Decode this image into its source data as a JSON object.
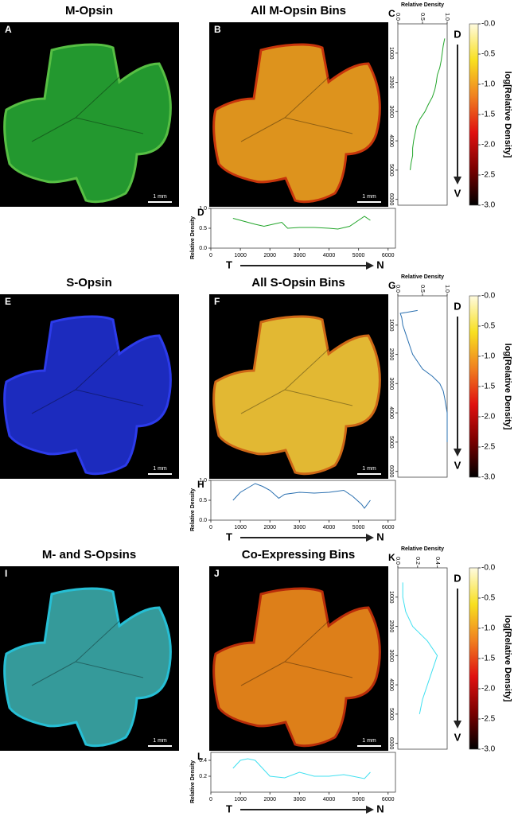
{
  "panels": [
    {
      "letter": "A",
      "title": "M-Opsin",
      "scale": "1 mm"
    },
    {
      "letter": "B",
      "title": "All M-Opsin Bins",
      "scale": "1 mm"
    },
    {
      "letter": "E",
      "title": "S-Opsin",
      "scale": "1 mm"
    },
    {
      "letter": "F",
      "title": "All S-Opsin Bins",
      "scale": "1 mm"
    },
    {
      "letter": "I",
      "title": "M- and S-Opsins",
      "scale": "1 mm"
    },
    {
      "letter": "J",
      "title": "Co-Expressing Bins",
      "scale": "1 mm"
    }
  ],
  "chart_data": [
    {
      "type": "line",
      "orientation": "vertical",
      "letter": "C",
      "xlabel": "Relative Density",
      "start_label": "D",
      "end_label": "V",
      "xlim": [
        0,
        1
      ],
      "xticks": [
        {
          "value": 0,
          "label": "0.0"
        },
        0.5,
        {
          "value": 1,
          "label": "1.0"
        }
      ],
      "ylim": [
        0,
        6200
      ],
      "yticks": [
        1000,
        2000,
        3000,
        4000,
        5000,
        6000
      ],
      "series": [
        {
          "color": "#22a52a",
          "x": [
            500,
            750,
            1000,
            1250,
            1500,
            1750,
            2000,
            2250,
            2500,
            2750,
            3000,
            3250,
            3500,
            3750,
            4000,
            4250,
            4500,
            4750,
            5000
          ],
          "values": [
            0.95,
            0.92,
            0.9,
            0.88,
            0.85,
            0.8,
            0.78,
            0.75,
            0.7,
            0.62,
            0.55,
            0.45,
            0.38,
            0.35,
            0.32,
            0.3,
            0.3,
            0.27,
            0.25
          ]
        }
      ]
    },
    {
      "type": "line",
      "orientation": "horizontal",
      "letter": "D",
      "ylabel": "Relative Density",
      "start_label": "T",
      "end_label": "N",
      "xlim": [
        0,
        6250
      ],
      "xticks": [
        0,
        1000,
        2000,
        3000,
        4000,
        5000,
        6000
      ],
      "ylim": [
        0,
        1
      ],
      "yticks": [
        {
          "value": 0,
          "label": "0.0"
        },
        0.5,
        {
          "value": 1,
          "label": "1.0"
        }
      ],
      "series": [
        {
          "color": "#22a52a",
          "x": [
            750,
            1000,
            1500,
            1800,
            2100,
            2400,
            2600,
            3000,
            3500,
            4000,
            4300,
            4700,
            5000,
            5200,
            5400
          ],
          "values": [
            0.75,
            0.7,
            0.6,
            0.55,
            0.6,
            0.65,
            0.5,
            0.52,
            0.52,
            0.5,
            0.48,
            0.55,
            0.7,
            0.8,
            0.7
          ]
        }
      ]
    },
    {
      "type": "colorbar",
      "label": "log[Relative Density]",
      "ylim": [
        -3,
        0
      ],
      "yticks": [
        {
          "value": 0,
          "label": "-0.0"
        },
        -0.5,
        {
          "value": -1,
          "label": "-1.0"
        },
        -1.5,
        {
          "value": -2,
          "label": "-2.0"
        },
        -2.5,
        {
          "value": -3,
          "label": "-3.0"
        }
      ],
      "colors": [
        "#000000",
        "#7a0000",
        "#e01010",
        "#f08020",
        "#f8e020",
        "#fffbe0"
      ]
    },
    {
      "type": "line",
      "orientation": "vertical",
      "letter": "G",
      "xlabel": "Relative Density",
      "start_label": "D",
      "end_label": "V",
      "xlim": [
        0,
        1
      ],
      "xticks": [
        {
          "value": 0,
          "label": "0.0"
        },
        0.5,
        {
          "value": 1,
          "label": "1.0"
        }
      ],
      "ylim": [
        0,
        6200
      ],
      "yticks": [
        1000,
        2000,
        3000,
        4000,
        5000,
        6000
      ],
      "series": [
        {
          "color": "#2a70b0",
          "x": [
            500,
            600,
            750,
            1000,
            1250,
            1500,
            1750,
            2000,
            2250,
            2500,
            2750,
            3000,
            3250,
            3500,
            4000,
            4500,
            5000
          ],
          "values": [
            0.4,
            0.05,
            0.08,
            0.1,
            0.15,
            0.2,
            0.25,
            0.3,
            0.4,
            0.5,
            0.7,
            0.85,
            0.92,
            0.95,
            1,
            1,
            1
          ]
        }
      ]
    },
    {
      "type": "line",
      "orientation": "horizontal",
      "letter": "H",
      "ylabel": "Relative Density",
      "start_label": "T",
      "end_label": "N",
      "xlim": [
        0,
        6250
      ],
      "xticks": [
        0,
        1000,
        2000,
        3000,
        4000,
        5000,
        6000
      ],
      "ylim": [
        0,
        1
      ],
      "yticks": [
        {
          "value": 0,
          "label": "0.0"
        },
        0.5,
        {
          "value": 1,
          "label": "1.0"
        }
      ],
      "series": [
        {
          "color": "#2a70b0",
          "x": [
            750,
            1000,
            1500,
            1750,
            2000,
            2300,
            2500,
            3000,
            3500,
            4000,
            4500,
            4800,
            5100,
            5200,
            5400
          ],
          "values": [
            0.5,
            0.7,
            0.92,
            0.85,
            0.75,
            0.55,
            0.65,
            0.7,
            0.68,
            0.7,
            0.75,
            0.6,
            0.4,
            0.3,
            0.5
          ]
        }
      ]
    },
    {
      "type": "colorbar",
      "label": "log[Relative Density]",
      "ylim": [
        -3,
        0
      ],
      "yticks": [
        {
          "value": 0,
          "label": "-0.0"
        },
        -0.5,
        {
          "value": -1,
          "label": "-1.0"
        },
        -1.5,
        {
          "value": -2,
          "label": "-2.0"
        },
        -2.5,
        {
          "value": -3,
          "label": "-3.0"
        }
      ],
      "colors": [
        "#000000",
        "#7a0000",
        "#e01010",
        "#f08020",
        "#f8e020",
        "#fffbe0"
      ]
    },
    {
      "type": "line",
      "orientation": "vertical",
      "letter": "K",
      "xlabel": "Relative Density",
      "start_label": "D",
      "end_label": "V",
      "xlim": [
        0,
        0.5
      ],
      "xticks": [
        {
          "value": 0,
          "label": "0.0"
        },
        0.2,
        0.4
      ],
      "ylim": [
        0,
        6200
      ],
      "yticks": [
        1000,
        2000,
        3000,
        4000,
        5000,
        6000
      ],
      "series": [
        {
          "color": "#40e0f0",
          "x": [
            500,
            1000,
            1500,
            2000,
            2500,
            3000,
            3500,
            4000,
            4500,
            5000
          ],
          "values": [
            0.05,
            0.05,
            0.08,
            0.15,
            0.3,
            0.4,
            0.35,
            0.3,
            0.25,
            0.22
          ]
        }
      ]
    },
    {
      "type": "line",
      "orientation": "horizontal",
      "letter": "L",
      "ylabel": "Relative Density",
      "start_label": "T",
      "end_label": "N",
      "xlim": [
        0,
        6250
      ],
      "xticks": [
        0,
        1000,
        2000,
        3000,
        4000,
        5000,
        6000
      ],
      "ylim": [
        0,
        0.5
      ],
      "yticks": [
        0.2,
        0.4
      ],
      "series": [
        {
          "color": "#40e0f0",
          "x": [
            750,
            1000,
            1250,
            1500,
            1750,
            2000,
            2500,
            3000,
            3500,
            4000,
            4500,
            4800,
            5200,
            5400
          ],
          "values": [
            0.3,
            0.4,
            0.42,
            0.4,
            0.3,
            0.2,
            0.18,
            0.25,
            0.2,
            0.2,
            0.22,
            0.2,
            0.17,
            0.25
          ]
        }
      ]
    },
    {
      "type": "colorbar",
      "label": "log[Relative Density]",
      "ylim": [
        -3,
        0
      ],
      "yticks": [
        {
          "value": 0,
          "label": "-0.0"
        },
        -0.5,
        {
          "value": -1,
          "label": "-1.0"
        },
        -1.5,
        {
          "value": -2,
          "label": "-2.0"
        },
        -2.5,
        {
          "value": -3,
          "label": "-3.0"
        }
      ],
      "colors": [
        "#000000",
        "#7a0000",
        "#e01010",
        "#f08020",
        "#f8e020",
        "#fffbe0"
      ]
    }
  ]
}
